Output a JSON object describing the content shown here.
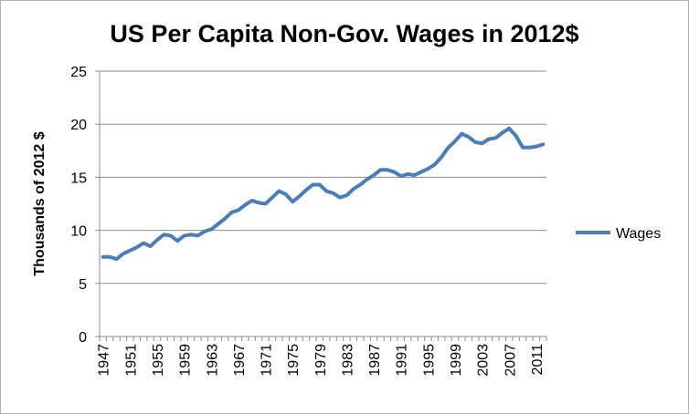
{
  "chart_data": {
    "type": "line",
    "title": "US Per Capita Non-Gov. Wages in 2012$",
    "xlabel": "",
    "ylabel": "Thousands of 2012 $",
    "ylim": [
      0,
      25
    ],
    "yticks": [
      0,
      5,
      10,
      15,
      20,
      25
    ],
    "grid": true,
    "legend_position": "right",
    "x": [
      1947,
      1948,
      1949,
      1950,
      1951,
      1952,
      1953,
      1954,
      1955,
      1956,
      1957,
      1958,
      1959,
      1960,
      1961,
      1962,
      1963,
      1964,
      1965,
      1966,
      1967,
      1968,
      1969,
      1970,
      1971,
      1972,
      1973,
      1974,
      1975,
      1976,
      1977,
      1978,
      1979,
      1980,
      1981,
      1982,
      1983,
      1984,
      1985,
      1986,
      1987,
      1988,
      1989,
      1990,
      1991,
      1992,
      1993,
      1994,
      1995,
      1996,
      1997,
      1998,
      1999,
      2000,
      2001,
      2002,
      2003,
      2004,
      2005,
      2006,
      2007,
      2008,
      2009,
      2010,
      2011,
      2012
    ],
    "x_tick_labels": [
      "1947",
      "1951",
      "1955",
      "1959",
      "1963",
      "1967",
      "1971",
      "1975",
      "1979",
      "1983",
      "1987",
      "1991",
      "1995",
      "1999",
      "2003",
      "2007",
      "2011"
    ],
    "series": [
      {
        "name": "Wages",
        "color": "#4a7ebb",
        "values": [
          7.5,
          7.5,
          7.3,
          7.8,
          8.1,
          8.4,
          8.8,
          8.5,
          9.1,
          9.6,
          9.5,
          9.0,
          9.5,
          9.6,
          9.5,
          9.9,
          10.1,
          10.6,
          11.1,
          11.7,
          11.9,
          12.4,
          12.8,
          12.6,
          12.5,
          13.1,
          13.7,
          13.4,
          12.7,
          13.2,
          13.8,
          14.3,
          14.3,
          13.7,
          13.5,
          13.1,
          13.3,
          13.9,
          14.3,
          14.8,
          15.2,
          15.7,
          15.7,
          15.5,
          15.1,
          15.3,
          15.2,
          15.5,
          15.8,
          16.2,
          16.9,
          17.8,
          18.4,
          19.1,
          18.8,
          18.3,
          18.2,
          18.6,
          18.7,
          19.2,
          19.6,
          18.9,
          17.8,
          17.8,
          17.9,
          18.1
        ]
      }
    ]
  }
}
